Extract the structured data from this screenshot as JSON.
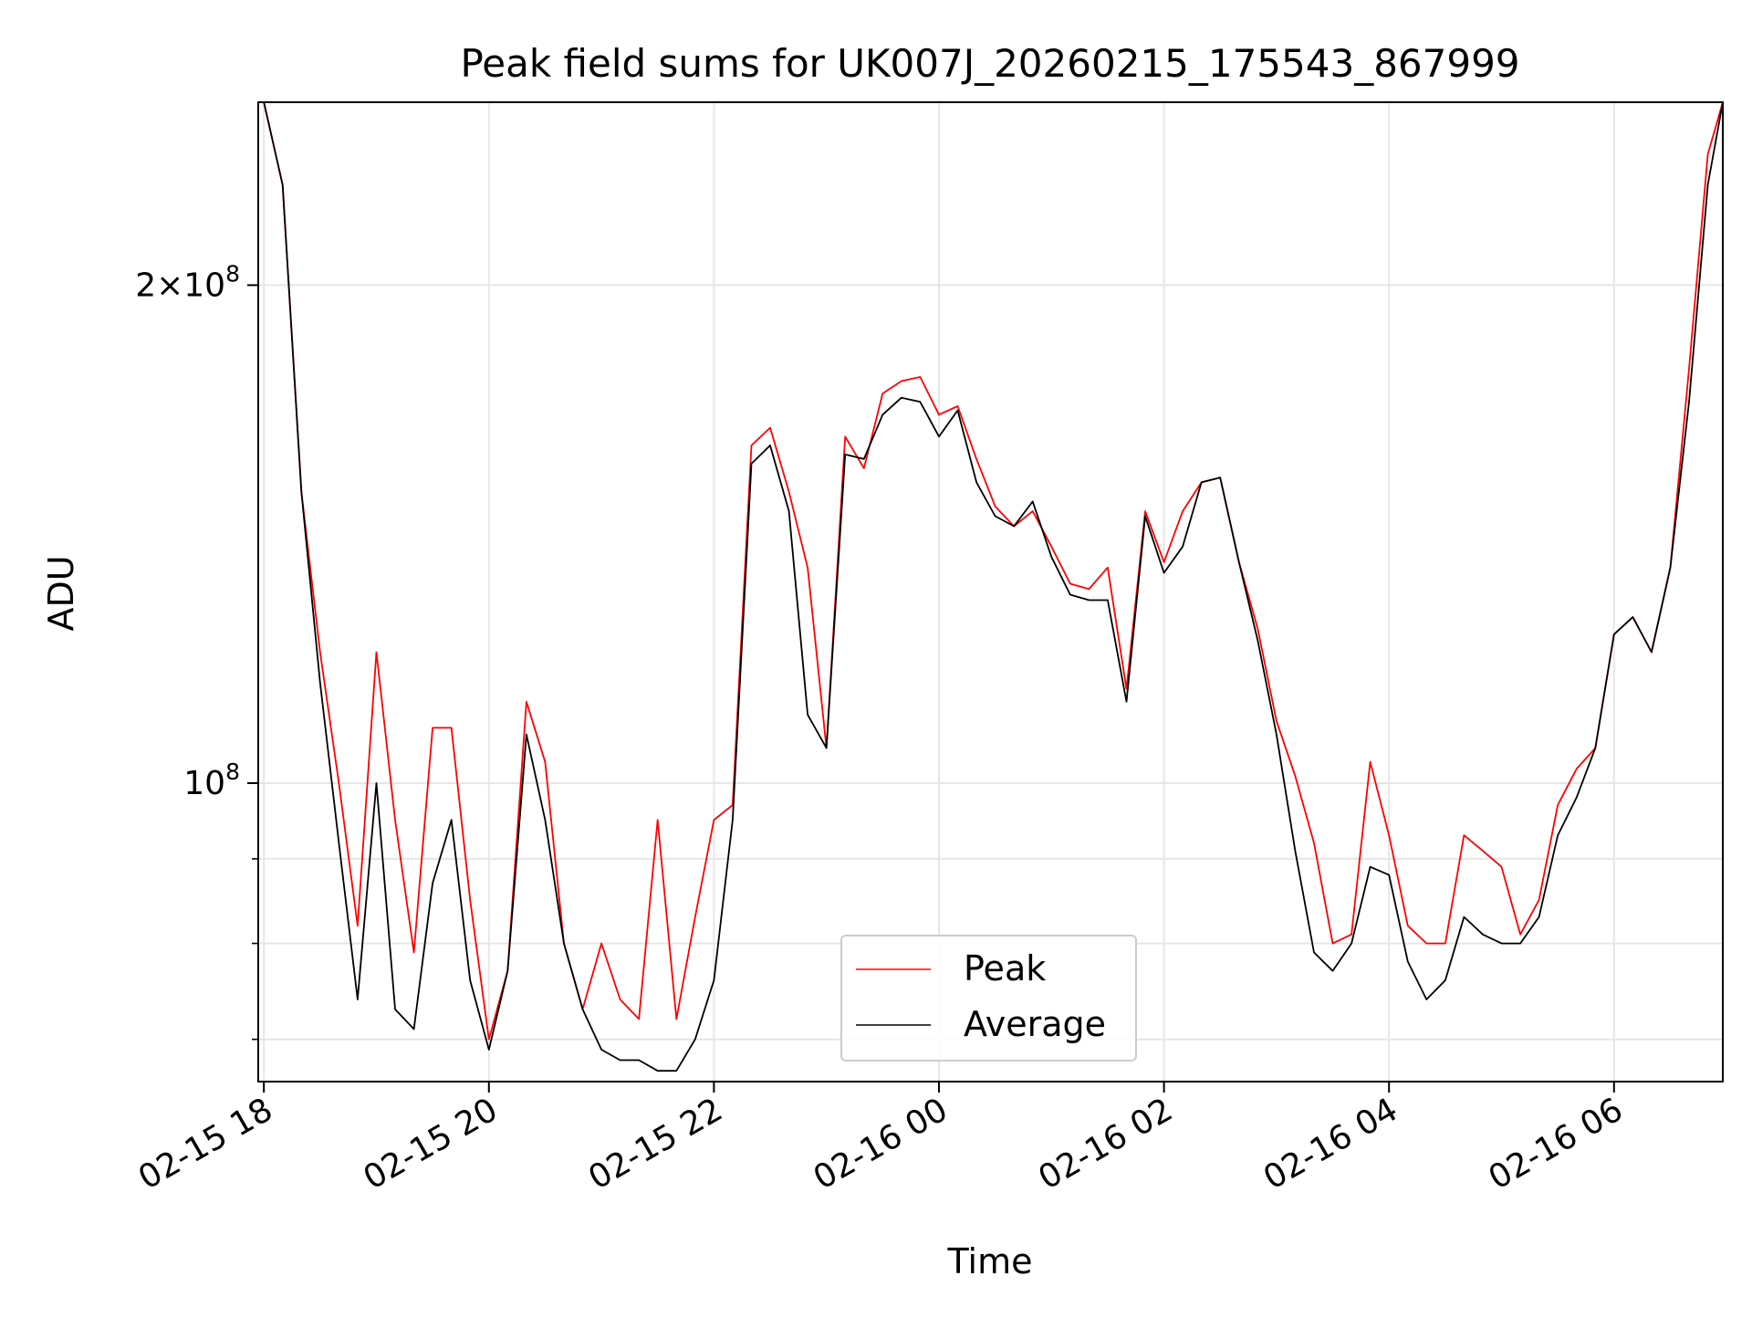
{
  "chart_data": {
    "type": "line",
    "title": "Peak field sums for UK007J_20260215_175543_867999",
    "xlabel": "Time",
    "ylabel": "ADU",
    "x_scale": "time",
    "y_scale": "log",
    "xlim": [
      "02-15 17:57",
      "02-16 06:58"
    ],
    "ylim": [
      66000000,
      258000000
    ],
    "x_ticks": [
      "02-15 18",
      "02-15 20",
      "02-15 22",
      "02-16 00",
      "02-16 02",
      "02-16 04",
      "02-16 06"
    ],
    "y_major_ticks": [
      {
        "value": 100000000,
        "base": "10",
        "exp": "8",
        "coef": ""
      },
      {
        "value": 200000000,
        "base": "10",
        "exp": "8",
        "coef": "2"
      }
    ],
    "y_minor_ticks": [
      70000000,
      80000000,
      90000000
    ],
    "grid": true,
    "legend": {
      "location": "lower center"
    },
    "series": [
      {
        "name": "Peak",
        "color": "#ff0000",
        "x": [
          "02-15 18:00",
          "02-15 18:10",
          "02-15 18:20",
          "02-15 18:30",
          "02-15 18:40",
          "02-15 18:50",
          "02-15 19:00",
          "02-15 19:10",
          "02-15 19:20",
          "02-15 19:30",
          "02-15 19:40",
          "02-15 19:50",
          "02-15 20:00",
          "02-15 20:10",
          "02-15 20:20",
          "02-15 20:30",
          "02-15 20:40",
          "02-15 20:50",
          "02-15 21:00",
          "02-15 21:10",
          "02-15 21:20",
          "02-15 21:30",
          "02-15 21:40",
          "02-15 21:50",
          "02-15 22:00",
          "02-15 22:10",
          "02-15 22:20",
          "02-15 22:30",
          "02-15 22:40",
          "02-15 22:50",
          "02-15 23:00",
          "02-15 23:10",
          "02-15 23:20",
          "02-15 23:30",
          "02-15 23:40",
          "02-15 23:50",
          "02-16 00:00",
          "02-16 00:10",
          "02-16 00:20",
          "02-16 00:30",
          "02-16 00:40",
          "02-16 00:50",
          "02-16 01:00",
          "02-16 01:10",
          "02-16 01:20",
          "02-16 01:30",
          "02-16 01:40",
          "02-16 01:50",
          "02-16 02:00",
          "02-16 02:10",
          "02-16 02:20",
          "02-16 02:30",
          "02-16 02:40",
          "02-16 02:50",
          "02-16 03:00",
          "02-16 03:10",
          "02-16 03:20",
          "02-16 03:30",
          "02-16 03:40",
          "02-16 03:50",
          "02-16 04:00",
          "02-16 04:10",
          "02-16 04:20",
          "02-16 04:30",
          "02-16 04:40",
          "02-16 04:50",
          "02-16 05:00",
          "02-16 05:10",
          "02-16 05:20",
          "02-16 05:30",
          "02-16 05:40",
          "02-16 05:50",
          "02-16 06:00",
          "02-16 06:10",
          "02-16 06:20",
          "02-16 06:30",
          "02-16 06:40",
          "02-16 06:50",
          "02-16 06:58"
        ],
        "values": [
          258000000,
          230000000,
          150000000,
          120000000,
          100000000,
          82000000,
          120000000,
          95000000,
          79000000,
          108000000,
          108000000,
          85000000,
          70000000,
          77000000,
          112000000,
          103000000,
          80000000,
          73000000,
          80000000,
          74000000,
          72000000,
          95000000,
          72000000,
          83000000,
          95000000,
          97000000,
          160000000,
          164000000,
          150000000,
          135000000,
          105000000,
          162000000,
          155000000,
          172000000,
          175000000,
          176000000,
          167000000,
          169000000,
          157000000,
          147000000,
          143000000,
          146000000,
          139000000,
          132000000,
          131000000,
          135000000,
          114000000,
          146000000,
          136000000,
          146000000,
          152000000,
          153000000,
          136000000,
          124000000,
          109000000,
          101000000,
          92000000,
          80000000,
          81000000,
          103000000,
          93000000,
          82000000,
          80000000,
          80000000,
          93000000,
          91000000,
          89000000,
          81000000,
          85000000,
          97000000,
          102000000,
          105000000,
          123000000,
          126000000,
          120000000,
          135000000,
          178000000,
          240000000,
          258000000
        ]
      },
      {
        "name": "Average",
        "color": "#000000",
        "x": [
          "02-15 18:00",
          "02-15 18:10",
          "02-15 18:20",
          "02-15 18:30",
          "02-15 18:40",
          "02-15 18:50",
          "02-15 19:00",
          "02-15 19:10",
          "02-15 19:20",
          "02-15 19:30",
          "02-15 19:40",
          "02-15 19:50",
          "02-15 20:00",
          "02-15 20:10",
          "02-15 20:20",
          "02-15 20:30",
          "02-15 20:40",
          "02-15 20:50",
          "02-15 21:00",
          "02-15 21:10",
          "02-15 21:20",
          "02-15 21:30",
          "02-15 21:40",
          "02-15 21:50",
          "02-15 22:00",
          "02-15 22:10",
          "02-15 22:20",
          "02-15 22:30",
          "02-15 22:40",
          "02-15 22:50",
          "02-15 23:00",
          "02-15 23:10",
          "02-15 23:20",
          "02-15 23:30",
          "02-15 23:40",
          "02-15 23:50",
          "02-16 00:00",
          "02-16 00:10",
          "02-16 00:20",
          "02-16 00:30",
          "02-16 00:40",
          "02-16 00:50",
          "02-16 01:00",
          "02-16 01:10",
          "02-16 01:20",
          "02-16 01:30",
          "02-16 01:40",
          "02-16 01:50",
          "02-16 02:00",
          "02-16 02:10",
          "02-16 02:20",
          "02-16 02:30",
          "02-16 02:40",
          "02-16 02:50",
          "02-16 03:00",
          "02-16 03:10",
          "02-16 03:20",
          "02-16 03:30",
          "02-16 03:40",
          "02-16 03:50",
          "02-16 04:00",
          "02-16 04:10",
          "02-16 04:20",
          "02-16 04:30",
          "02-16 04:40",
          "02-16 04:50",
          "02-16 05:00",
          "02-16 05:10",
          "02-16 05:20",
          "02-16 05:30",
          "02-16 05:40",
          "02-16 05:50",
          "02-16 06:00",
          "02-16 06:10",
          "02-16 06:20",
          "02-16 06:30",
          "02-16 06:40",
          "02-16 06:50",
          "02-16 06:58"
        ],
        "values": [
          258000000,
          230000000,
          150000000,
          115000000,
          92000000,
          74000000,
          100000000,
          73000000,
          71000000,
          87000000,
          95000000,
          76000000,
          69000000,
          77000000,
          107000000,
          95000000,
          80000000,
          73000000,
          69000000,
          68000000,
          68000000,
          67000000,
          67000000,
          70000000,
          76000000,
          95000000,
          156000000,
          160000000,
          146000000,
          110000000,
          105000000,
          158000000,
          157000000,
          167000000,
          171000000,
          170000000,
          162000000,
          168000000,
          152000000,
          145000000,
          143000000,
          148000000,
          137000000,
          130000000,
          129000000,
          129000000,
          112000000,
          145000000,
          134000000,
          139000000,
          152000000,
          153000000,
          136000000,
          122000000,
          107000000,
          91000000,
          79000000,
          77000000,
          80000000,
          89000000,
          88000000,
          78000000,
          74000000,
          76000000,
          83000000,
          81000000,
          80000000,
          80000000,
          83000000,
          93000000,
          98000000,
          105000000,
          123000000,
          126000000,
          120000000,
          135000000,
          170000000,
          230000000,
          258000000
        ]
      }
    ]
  }
}
